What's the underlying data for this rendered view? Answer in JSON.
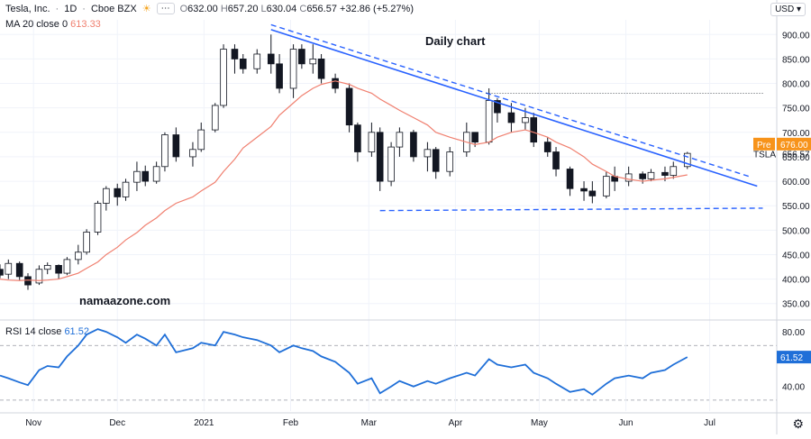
{
  "header": {
    "symbol": "Tesla, Inc.",
    "interval": "1D",
    "exchange": "Cboe BZX",
    "open_label": "O",
    "open": "632.00",
    "high_label": "H",
    "high": "657.20",
    "low_label": "L",
    "low": "630.04",
    "close_label": "C",
    "close": "656.57",
    "change": "+32.86 (+5.27%)"
  },
  "ma": {
    "label": "MA 20 close 0",
    "value": "613.33",
    "color": "#f08070"
  },
  "rsi": {
    "label": "RSI 14 close",
    "value": "61.52",
    "color": "#1f6fd8"
  },
  "currency": "USD",
  "annotations": {
    "title": "Daily chart",
    "watermark": "namaazone.com"
  },
  "price_tags": {
    "pre_label": "Pre",
    "pre_value": "676.00",
    "ticker": "TSLA",
    "last_value": "656.57"
  },
  "colors": {
    "up": "#26a69a",
    "down": "#131722",
    "trendline": "#2962ff",
    "ma": "#f08070",
    "pre": "#f7931a"
  },
  "chart_data": [
    {
      "type": "candlestick",
      "title": "Daily chart",
      "ylim": [
        320,
        930
      ],
      "y_ticks": [
        350,
        400,
        450,
        500,
        550,
        600,
        650,
        700,
        750,
        800,
        850,
        900
      ],
      "x_ticks": [
        {
          "label": "Nov",
          "date": "2020-11-01"
        },
        {
          "label": "Dec",
          "date": "2020-12-01"
        },
        {
          "label": "2021",
          "date": "2021-01-01"
        },
        {
          "label": "Feb",
          "date": "2021-02-01"
        },
        {
          "label": "Mar",
          "date": "2021-03-01"
        },
        {
          "label": "Apr",
          "date": "2021-04-01"
        },
        {
          "label": "May",
          "date": "2021-05-01"
        },
        {
          "label": "Jun",
          "date": "2021-06-01"
        },
        {
          "label": "Jul",
          "date": "2021-07-01"
        }
      ],
      "xlim": [
        "2020-10-20",
        "2021-07-25"
      ],
      "dates": [
        "2020-10-20",
        "2020-10-23",
        "2020-10-27",
        "2020-10-30",
        "2020-11-03",
        "2020-11-06",
        "2020-11-10",
        "2020-11-13",
        "2020-11-17",
        "2020-11-20",
        "2020-11-24",
        "2020-11-27",
        "2020-12-01",
        "2020-12-04",
        "2020-12-08",
        "2020-12-11",
        "2020-12-15",
        "2020-12-18",
        "2020-12-22",
        "2020-12-28",
        "2020-12-31",
        "2021-01-05",
        "2021-01-08",
        "2021-01-12",
        "2021-01-15",
        "2021-01-20",
        "2021-01-25",
        "2021-01-28",
        "2021-02-02",
        "2021-02-05",
        "2021-02-09",
        "2021-02-12",
        "2021-02-17",
        "2021-02-22",
        "2021-02-25",
        "2021-03-02",
        "2021-03-05",
        "2021-03-09",
        "2021-03-12",
        "2021-03-17",
        "2021-03-22",
        "2021-03-25",
        "2021-03-30",
        "2021-04-05",
        "2021-04-08",
        "2021-04-13",
        "2021-04-16",
        "2021-04-21",
        "2021-04-26",
        "2021-04-29",
        "2021-05-04",
        "2021-05-07",
        "2021-05-12",
        "2021-05-17",
        "2021-05-20",
        "2021-05-25",
        "2021-05-28",
        "2021-06-02",
        "2021-06-07",
        "2021-06-10",
        "2021-06-15",
        "2021-06-18",
        "2021-06-23"
      ],
      "series": [
        {
          "name": "Tesla, Inc.",
          "ohlc": [
            [
              420,
              430,
              402,
              408
            ],
            [
              410,
              440,
              400,
              432
            ],
            [
              432,
              436,
              398,
              405
            ],
            [
              405,
              412,
              378,
              388
            ],
            [
              392,
              428,
              388,
              420
            ],
            [
              420,
              434,
              410,
              428
            ],
            [
              428,
              430,
              400,
              412
            ],
            [
              412,
              445,
              408,
              440
            ],
            [
              440,
              470,
              430,
              455
            ],
            [
              455,
              502,
              450,
              496
            ],
            [
              496,
              560,
              490,
              555
            ],
            [
              555,
              590,
              540,
              585
            ],
            [
              585,
              595,
              550,
              568
            ],
            [
              568,
              605,
              560,
              598
            ],
            [
              598,
              640,
              580,
              620
            ],
            [
              620,
              632,
              590,
              600
            ],
            [
              600,
              640,
              595,
              630
            ],
            [
              630,
              700,
              620,
              695
            ],
            [
              695,
              710,
              640,
              650
            ],
            [
              650,
              680,
              630,
              665
            ],
            [
              665,
              720,
              660,
              705
            ],
            [
              705,
              760,
              700,
              755
            ],
            [
              755,
              880,
              750,
              870
            ],
            [
              870,
              880,
              820,
              850
            ],
            [
              850,
              860,
              820,
              830
            ],
            [
              830,
              870,
              820,
              860
            ],
            [
              860,
              900,
              820,
              840
            ],
            [
              840,
              860,
              780,
              790
            ],
            [
              790,
              880,
              770,
              870
            ],
            [
              870,
              880,
              830,
              840
            ],
            [
              840,
              880,
              820,
              850
            ],
            [
              850,
              860,
              800,
              810
            ],
            [
              810,
              820,
              780,
              790
            ],
            [
              790,
              800,
              700,
              715
            ],
            [
              715,
              720,
              640,
              660
            ],
            [
              660,
              720,
              650,
              700
            ],
            [
              700,
              710,
              580,
              600
            ],
            [
              600,
              680,
              590,
              670
            ],
            [
              670,
              710,
              650,
              700
            ],
            [
              700,
              705,
              640,
              650
            ],
            [
              650,
              680,
              620,
              665
            ],
            [
              665,
              670,
              605,
              620
            ],
            [
              620,
              670,
              610,
              660
            ],
            [
              660,
              720,
              650,
              700
            ],
            [
              700,
              700,
              670,
              680
            ],
            [
              680,
              790,
              675,
              765
            ],
            [
              765,
              770,
              720,
              740
            ],
            [
              740,
              760,
              700,
              720
            ],
            [
              720,
              750,
              705,
              730
            ],
            [
              730,
              740,
              670,
              680
            ],
            [
              680,
              690,
              650,
              660
            ],
            [
              660,
              670,
              610,
              625
            ],
            [
              625,
              630,
              570,
              585
            ],
            [
              585,
              600,
              560,
              580
            ],
            [
              580,
              600,
              555,
              570
            ],
            [
              570,
              620,
              565,
              610
            ],
            [
              610,
              630,
              580,
              600
            ],
            [
              600,
              630,
              590,
              615
            ],
            [
              615,
              620,
              595,
              605
            ],
            [
              605,
              625,
              600,
              618
            ],
            [
              618,
              630,
              600,
              612
            ],
            [
              612,
              640,
              605,
              630
            ],
            [
              630,
              660,
              625,
              657
            ]
          ]
        },
        {
          "name": "MA 20 close 0",
          "values": [
            400,
            398,
            397,
            398,
            397,
            398,
            400,
            405,
            412,
            422,
            435,
            450,
            465,
            480,
            495,
            510,
            525,
            540,
            555,
            568,
            580,
            598,
            620,
            645,
            668,
            690,
            712,
            735,
            760,
            775,
            790,
            798,
            805,
            798,
            790,
            780,
            768,
            755,
            745,
            730,
            715,
            700,
            690,
            680,
            675,
            680,
            690,
            700,
            705,
            700,
            690,
            680,
            668,
            650,
            635,
            620,
            610,
            604,
            600,
            602,
            605,
            608,
            613
          ]
        }
      ],
      "trendlines": [
        {
          "name": "descending-resistance-solid",
          "points": [
            [
              "2021-01-25",
              910
            ],
            [
              "2021-07-18",
              590
            ]
          ]
        },
        {
          "name": "descending-resistance-dashed",
          "points": [
            [
              "2021-01-25",
              920
            ],
            [
              "2021-07-15",
              610
            ]
          ]
        },
        {
          "name": "horizontal-resistance-dotted",
          "points": [
            [
              "2021-04-12",
              780
            ],
            [
              "2021-07-20",
              780
            ]
          ]
        },
        {
          "name": "horizontal-support-dashed",
          "points": [
            [
              "2021-03-05",
              540
            ],
            [
              "2021-07-20",
              545
            ]
          ]
        }
      ]
    },
    {
      "type": "line",
      "title": "RSI 14 close",
      "ylim": [
        22,
        88
      ],
      "y_ticks": [
        40,
        60,
        80
      ],
      "bands": [
        30,
        70
      ],
      "series": [
        {
          "name": "RSI 14 close",
          "values": [
            48,
            46,
            43,
            41,
            52,
            55,
            54,
            62,
            70,
            78,
            82,
            80,
            76,
            72,
            78,
            75,
            70,
            78,
            65,
            68,
            72,
            70,
            80,
            78,
            76,
            74,
            70,
            65,
            70,
            68,
            66,
            62,
            58,
            50,
            42,
            46,
            35,
            40,
            44,
            40,
            44,
            42,
            46,
            50,
            48,
            60,
            56,
            54,
            56,
            50,
            46,
            42,
            36,
            38,
            34,
            42,
            46,
            48,
            46,
            50,
            52,
            56,
            61.52
          ]
        }
      ]
    }
  ]
}
